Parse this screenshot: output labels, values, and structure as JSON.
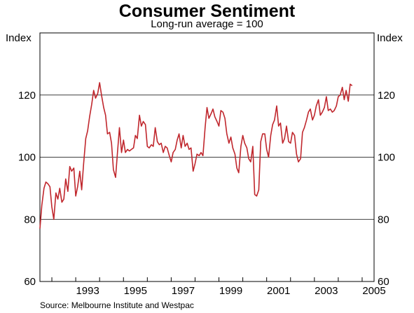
{
  "title": "Consumer Sentiment",
  "subtitle": "Long-run average = 100",
  "y_unit_left": "Index",
  "y_unit_right": "Index",
  "source": "Source: Melbourne Institute and Westpac",
  "colors": {
    "line": "#c0272d",
    "grid": "#000000",
    "frame": "#000000"
  },
  "chart_data": {
    "type": "line",
    "title": "Consumer Sentiment",
    "subtitle": "Long-run average = 100",
    "ylabel": "Index",
    "xlim": [
      1991.5,
      2005.5
    ],
    "ylim": [
      60,
      140
    ],
    "yticks": [
      60,
      80,
      100,
      120
    ],
    "ytick_labels": [
      "60",
      "80",
      "100",
      "120"
    ],
    "xtick_labels": [
      "1993",
      "1995",
      "1997",
      "1999",
      "2001",
      "2003",
      "2005"
    ],
    "xtick_positions": [
      1993,
      1995,
      1997,
      1999,
      2001,
      2003,
      2005
    ],
    "gridlines": [
      80,
      100,
      120
    ],
    "series": [
      {
        "values": [
          [
            1991.5,
            77.0
          ],
          [
            1991.58,
            84.5
          ],
          [
            1991.67,
            90.0
          ],
          [
            1991.75,
            92.0
          ],
          [
            1991.83,
            91.5
          ],
          [
            1991.92,
            90.5
          ],
          [
            1992.0,
            84.0
          ],
          [
            1992.08,
            80.0
          ],
          [
            1992.17,
            88.5
          ],
          [
            1992.25,
            86.5
          ],
          [
            1992.33,
            90.0
          ],
          [
            1992.42,
            85.5
          ],
          [
            1992.5,
            86.5
          ],
          [
            1992.58,
            93.0
          ],
          [
            1992.67,
            89.0
          ],
          [
            1992.75,
            97.0
          ],
          [
            1992.83,
            95.5
          ],
          [
            1992.92,
            96.5
          ],
          [
            1993.0,
            87.5
          ],
          [
            1993.08,
            90.5
          ],
          [
            1993.17,
            95.5
          ],
          [
            1993.25,
            89.5
          ],
          [
            1993.33,
            98.0
          ],
          [
            1993.42,
            106.0
          ],
          [
            1993.5,
            108.5
          ],
          [
            1993.58,
            113.0
          ],
          [
            1993.67,
            117.0
          ],
          [
            1993.75,
            121.5
          ],
          [
            1993.83,
            119.0
          ],
          [
            1993.92,
            120.5
          ],
          [
            1994.0,
            124.0
          ],
          [
            1994.08,
            120.0
          ],
          [
            1994.17,
            116.0
          ],
          [
            1994.25,
            113.5
          ],
          [
            1994.33,
            107.5
          ],
          [
            1994.42,
            108.0
          ],
          [
            1994.5,
            104.5
          ],
          [
            1994.58,
            96.0
          ],
          [
            1994.67,
            93.5
          ],
          [
            1994.75,
            101.5
          ],
          [
            1994.83,
            109.5
          ],
          [
            1994.92,
            101.5
          ],
          [
            1995.0,
            105.5
          ],
          [
            1995.08,
            101.5
          ],
          [
            1995.17,
            102.5
          ],
          [
            1995.25,
            102.0
          ],
          [
            1995.33,
            102.5
          ],
          [
            1995.42,
            103.0
          ],
          [
            1995.5,
            107.0
          ],
          [
            1995.58,
            106.0
          ],
          [
            1995.67,
            113.5
          ],
          [
            1995.75,
            110.0
          ],
          [
            1995.83,
            111.5
          ],
          [
            1995.92,
            110.5
          ],
          [
            1996.0,
            103.5
          ],
          [
            1996.08,
            103.0
          ],
          [
            1996.17,
            104.0
          ],
          [
            1996.25,
            103.5
          ],
          [
            1996.33,
            109.5
          ],
          [
            1996.42,
            105.0
          ],
          [
            1996.5,
            104.0
          ],
          [
            1996.58,
            104.5
          ],
          [
            1996.67,
            101.5
          ],
          [
            1996.75,
            103.5
          ],
          [
            1996.83,
            103.0
          ],
          [
            1996.92,
            100.5
          ],
          [
            1997.0,
            98.5
          ],
          [
            1997.08,
            101.5
          ],
          [
            1997.17,
            102.5
          ],
          [
            1997.25,
            105.5
          ],
          [
            1997.33,
            107.5
          ],
          [
            1997.42,
            103.0
          ],
          [
            1997.5,
            107.0
          ],
          [
            1997.58,
            103.5
          ],
          [
            1997.67,
            104.5
          ],
          [
            1997.75,
            102.5
          ],
          [
            1997.83,
            103.0
          ],
          [
            1997.92,
            95.5
          ],
          [
            1998.0,
            98.0
          ],
          [
            1998.08,
            101.0
          ],
          [
            1998.17,
            100.5
          ],
          [
            1998.25,
            101.5
          ],
          [
            1998.33,
            100.5
          ],
          [
            1998.42,
            109.5
          ],
          [
            1998.5,
            116.0
          ],
          [
            1998.58,
            112.5
          ],
          [
            1998.67,
            114.0
          ],
          [
            1998.75,
            115.5
          ],
          [
            1998.83,
            113.0
          ],
          [
            1998.92,
            111.5
          ],
          [
            1999.0,
            110.0
          ],
          [
            1999.08,
            115.0
          ],
          [
            1999.17,
            114.5
          ],
          [
            1999.25,
            112.5
          ],
          [
            1999.33,
            107.5
          ],
          [
            1999.42,
            104.5
          ],
          [
            1999.5,
            106.5
          ],
          [
            1999.58,
            103.0
          ],
          [
            1999.67,
            101.0
          ],
          [
            1999.75,
            96.5
          ],
          [
            1999.83,
            95.0
          ],
          [
            1999.92,
            103.5
          ],
          [
            2000.0,
            107.0
          ],
          [
            2000.08,
            104.5
          ],
          [
            2000.17,
            103.0
          ],
          [
            2000.25,
            99.5
          ],
          [
            2000.33,
            98.5
          ],
          [
            2000.42,
            103.5
          ],
          [
            2000.5,
            88.0
          ],
          [
            2000.58,
            87.5
          ],
          [
            2000.67,
            89.5
          ],
          [
            2000.75,
            105.0
          ],
          [
            2000.83,
            107.5
          ],
          [
            2000.92,
            107.5
          ],
          [
            2001.0,
            102.5
          ],
          [
            2001.08,
            100.0
          ],
          [
            2001.17,
            107.0
          ],
          [
            2001.25,
            110.5
          ],
          [
            2001.33,
            112.0
          ],
          [
            2001.42,
            116.5
          ],
          [
            2001.5,
            110.0
          ],
          [
            2001.58,
            111.0
          ],
          [
            2001.67,
            104.5
          ],
          [
            2001.75,
            106.0
          ],
          [
            2001.83,
            110.0
          ],
          [
            2001.92,
            105.0
          ],
          [
            2002.0,
            104.5
          ],
          [
            2002.08,
            108.0
          ],
          [
            2002.17,
            107.0
          ],
          [
            2002.25,
            101.0
          ],
          [
            2002.33,
            98.5
          ],
          [
            2002.42,
            99.5
          ],
          [
            2002.5,
            108.0
          ],
          [
            2002.58,
            109.5
          ],
          [
            2002.67,
            112.0
          ],
          [
            2002.75,
            114.5
          ],
          [
            2002.83,
            115.5
          ],
          [
            2002.92,
            112.0
          ],
          [
            2003.0,
            113.5
          ],
          [
            2003.08,
            116.5
          ],
          [
            2003.17,
            118.5
          ],
          [
            2003.25,
            113.5
          ],
          [
            2003.33,
            114.5
          ],
          [
            2003.42,
            116.0
          ],
          [
            2003.5,
            119.5
          ],
          [
            2003.58,
            115.0
          ],
          [
            2003.67,
            115.5
          ],
          [
            2003.75,
            114.5
          ],
          [
            2003.83,
            115.0
          ],
          [
            2003.92,
            116.5
          ],
          [
            2004.0,
            119.5
          ],
          [
            2004.08,
            120.0
          ],
          [
            2004.17,
            122.5
          ],
          [
            2004.25,
            118.5
          ],
          [
            2004.33,
            121.5
          ],
          [
            2004.42,
            118.0
          ],
          [
            2004.5,
            123.5
          ],
          [
            2004.58,
            123.0
          ]
        ]
      }
    ]
  }
}
